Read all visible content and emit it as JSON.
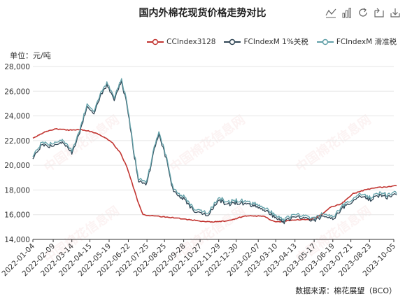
{
  "chart_title": "国内外棉花现货价格走势对比",
  "toolbox": {
    "icons": [
      "line-chart-icon",
      "bar-chart-icon",
      "refresh-icon",
      "restore-icon",
      "download-icon"
    ]
  },
  "unit_label": "单位：元/吨",
  "source_label": "数据来源：棉花展望（BCO）",
  "colors": {
    "ccindex": "#c23531",
    "fc_1pct": "#2f4554",
    "fc_sliding": "#61a0a8"
  },
  "chart_data": {
    "type": "line",
    "title": "国内外棉花现货价格走势对比",
    "ylabel": "单位：元/吨",
    "ylim": [
      14000,
      28000
    ],
    "yticks": [
      "14,000",
      "16,000",
      "18,000",
      "20,000",
      "22,000",
      "24,000",
      "26,000",
      "28,000"
    ],
    "x_tick_labels": [
      "2022-01-04",
      "2022-02-09",
      "2022-03-14",
      "2022-04-15",
      "2022-05-19",
      "2022-06-22",
      "2022-07-25",
      "2022-08-25",
      "2022-09-28",
      "2022-10-27",
      "2022-11-29",
      "2022-12-30",
      "2023-02-07",
      "2023-03-10",
      "2023-04-13",
      "2023-05-17",
      "2023-06-19",
      "2023-07-21",
      "2023-08-23",
      "2023-10-05"
    ],
    "grid": true,
    "legend_position": "top-right",
    "series": [
      {
        "name": "CCIndex3128",
        "color": "#c23531",
        "x": [
          "2022-01-04",
          "2022-01-25",
          "2022-02-15",
          "2022-03-08",
          "2022-03-30",
          "2022-04-20",
          "2022-05-10",
          "2022-05-25",
          "2022-06-08",
          "2022-06-20",
          "2022-07-01",
          "2022-07-08",
          "2022-07-18",
          "2022-08-05",
          "2022-09-01",
          "2022-09-30",
          "2022-10-25",
          "2022-11-15",
          "2022-12-15",
          "2023-01-15",
          "2023-02-15",
          "2023-03-10",
          "2023-04-01",
          "2023-04-20",
          "2023-05-10",
          "2023-05-30",
          "2023-06-15",
          "2023-07-05",
          "2023-07-25",
          "2023-08-15",
          "2023-09-05",
          "2023-09-25",
          "2023-10-10"
        ],
        "values": [
          22200,
          22700,
          22950,
          22850,
          22900,
          22700,
          22300,
          21800,
          21000,
          19800,
          18200,
          17200,
          16000,
          15900,
          15800,
          15650,
          15500,
          15400,
          15500,
          15900,
          15900,
          15400,
          15500,
          15600,
          15600,
          16000,
          16600,
          16900,
          17700,
          18000,
          18200,
          18250,
          18350
        ]
      },
      {
        "name": "FCIndexM 1%关税",
        "color": "#2f4554",
        "x": [
          "2022-01-04",
          "2022-01-20",
          "2022-02-10",
          "2022-02-25",
          "2022-03-14",
          "2022-03-28",
          "2022-04-10",
          "2022-04-22",
          "2022-05-05",
          "2022-05-15",
          "2022-05-28",
          "2022-06-10",
          "2022-06-20",
          "2022-07-01",
          "2022-07-10",
          "2022-07-25",
          "2022-08-05",
          "2022-08-15",
          "2022-08-28",
          "2022-09-10",
          "2022-09-28",
          "2022-10-15",
          "2022-10-27",
          "2022-11-10",
          "2022-11-29",
          "2022-12-15",
          "2022-12-30",
          "2023-01-15",
          "2023-02-07",
          "2023-02-25",
          "2023-03-10",
          "2023-03-25",
          "2023-04-13",
          "2023-04-30",
          "2023-05-17",
          "2023-06-01",
          "2023-06-19",
          "2023-07-05",
          "2023-07-21",
          "2023-08-05",
          "2023-08-23",
          "2023-09-10",
          "2023-09-25",
          "2023-10-10"
        ],
        "values": [
          20500,
          21700,
          21500,
          21900,
          21000,
          22700,
          24700,
          24300,
          25700,
          26500,
          25300,
          26800,
          24800,
          21200,
          18800,
          18500,
          20900,
          22600,
          20500,
          17800,
          17300,
          16300,
          16200,
          16000,
          17200,
          16800,
          17000,
          16900,
          16600,
          16200,
          15700,
          15400,
          15900,
          15700,
          15500,
          15900,
          15600,
          16500,
          16900,
          17500,
          17200,
          17600,
          17400,
          17600
        ]
      },
      {
        "name": "FCIndexM 滑准税",
        "color": "#61a0a8",
        "x": [
          "2022-01-04",
          "2022-01-20",
          "2022-02-10",
          "2022-02-25",
          "2022-03-14",
          "2022-03-28",
          "2022-04-10",
          "2022-04-22",
          "2022-05-05",
          "2022-05-15",
          "2022-05-28",
          "2022-06-10",
          "2022-06-20",
          "2022-07-01",
          "2022-07-10",
          "2022-07-25",
          "2022-08-05",
          "2022-08-15",
          "2022-08-28",
          "2022-09-10",
          "2022-09-28",
          "2022-10-15",
          "2022-10-27",
          "2022-11-10",
          "2022-11-29",
          "2022-12-15",
          "2022-12-30",
          "2023-01-15",
          "2023-02-07",
          "2023-02-25",
          "2023-03-10",
          "2023-03-25",
          "2023-04-13",
          "2023-04-30",
          "2023-05-17",
          "2023-06-01",
          "2023-06-19",
          "2023-07-05",
          "2023-07-21",
          "2023-08-05",
          "2023-08-23",
          "2023-09-10",
          "2023-09-25",
          "2023-10-10"
        ],
        "values": [
          20600,
          21800,
          21600,
          22000,
          21100,
          22800,
          24800,
          24400,
          25800,
          26600,
          25400,
          26900,
          24900,
          21300,
          18900,
          18600,
          21000,
          22700,
          20600,
          17900,
          17400,
          16400,
          16300,
          16100,
          17300,
          16900,
          17100,
          17000,
          16700,
          16300,
          15800,
          15500,
          16000,
          15800,
          15600,
          16000,
          15700,
          16600,
          17000,
          17600,
          17300,
          17700,
          17500,
          17700
        ]
      }
    ]
  }
}
